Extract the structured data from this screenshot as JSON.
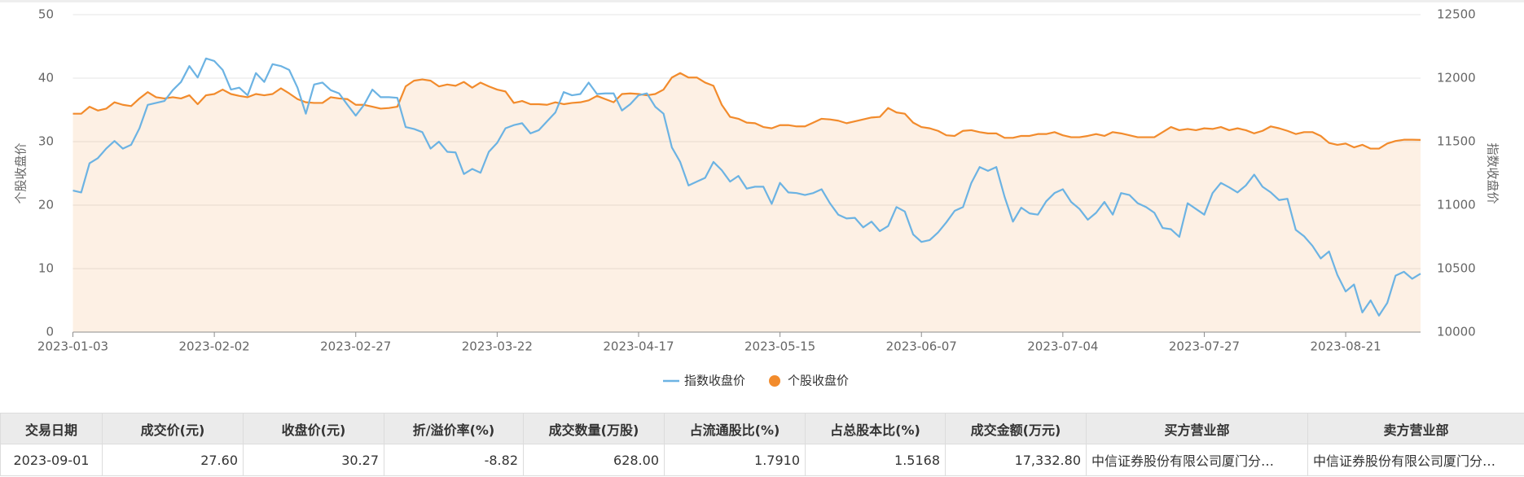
{
  "chart_data": {
    "type": "line",
    "categories": [
      "2023-01-03",
      null,
      null,
      null,
      null,
      null,
      null,
      null,
      null,
      null,
      null,
      null,
      null,
      null,
      null,
      null,
      null,
      "2023-02-02",
      null,
      null,
      null,
      null,
      null,
      null,
      null,
      null,
      null,
      null,
      null,
      null,
      null,
      null,
      null,
      null,
      "2023-02-27",
      null,
      null,
      null,
      null,
      null,
      null,
      null,
      null,
      null,
      null,
      null,
      null,
      null,
      null,
      null,
      null,
      "2023-03-22",
      null,
      null,
      null,
      null,
      null,
      null,
      null,
      null,
      null,
      null,
      null,
      null,
      null,
      null,
      null,
      null,
      "2023-04-17",
      null,
      null,
      null,
      null,
      null,
      null,
      null,
      null,
      null,
      null,
      null,
      null,
      null,
      null,
      null,
      null,
      "2023-05-15",
      null,
      null,
      null,
      null,
      null,
      null,
      null,
      null,
      null,
      null,
      null,
      null,
      null,
      null,
      null,
      null,
      "2023-06-07",
      null,
      null,
      null,
      null,
      null,
      null,
      null,
      null,
      null,
      null,
      null,
      null,
      null,
      null,
      null,
      null,
      "2023-07-04",
      null,
      null,
      null,
      null,
      null,
      null,
      null,
      null,
      null,
      null,
      null,
      null,
      null,
      null,
      null,
      null,
      "2023-07-27",
      null,
      null,
      null,
      null,
      null,
      null,
      null,
      null,
      null,
      null,
      null,
      null,
      null,
      null,
      null,
      null,
      "2023-08-21",
      null,
      null,
      null,
      null,
      null,
      null,
      null,
      null,
      null
    ],
    "y_label": "个股收盘价",
    "y2_label": "指数收盘价",
    "ylim": [
      0,
      50
    ],
    "yticks": [
      0,
      10,
      20,
      30,
      40,
      50
    ],
    "y2lim": [
      10000,
      12500
    ],
    "y2ticks": [
      10000,
      10500,
      11000,
      11500,
      12000,
      12500
    ],
    "grid": true,
    "legend": "bottom",
    "series": [
      {
        "name": "指数收盘价",
        "color": "#6cb3e3",
        "axis": "y2",
        "values": [
          11115,
          11100,
          11330,
          11370,
          11445,
          11505,
          11445,
          11475,
          11605,
          11790,
          11805,
          11820,
          11905,
          11970,
          12095,
          12005,
          12155,
          12135,
          12065,
          11910,
          11925,
          11865,
          12040,
          11970,
          12110,
          12095,
          12065,
          11925,
          11720,
          11950,
          11965,
          11905,
          11880,
          11790,
          11705,
          11790,
          11910,
          11850,
          11850,
          11845,
          11615,
          11600,
          11575,
          11445,
          11500,
          11420,
          11415,
          11245,
          11285,
          11255,
          11420,
          11490,
          11605,
          11630,
          11645,
          11565,
          11590,
          11660,
          11730,
          11890,
          11865,
          11875,
          11965,
          11875,
          11880,
          11880,
          11745,
          11795,
          11865,
          11880,
          11775,
          11720,
          11455,
          11340,
          11155,
          11185,
          11215,
          11340,
          11275,
          11185,
          11230,
          11130,
          11145,
          11145,
          11010,
          11175,
          11100,
          11095,
          11080,
          11095,
          11125,
          11015,
          10925,
          10895,
          10900,
          10825,
          10870,
          10795,
          10835,
          10985,
          10950,
          10770,
          10710,
          10725,
          10785,
          10865,
          10955,
          10985,
          11175,
          11300,
          11270,
          11300,
          11065,
          10870,
          10980,
          10935,
          10925,
          11030,
          11095,
          11125,
          11025,
          10970,
          10885,
          10940,
          11025,
          10925,
          11095,
          11080,
          11015,
          10985,
          10940,
          10820,
          10810,
          10750,
          11015,
          10970,
          10925,
          11095,
          11175,
          11140,
          11100,
          11155,
          11240,
          11145,
          11100,
          11040,
          11050,
          10805,
          10755,
          10680,
          10580,
          10635,
          10450,
          10320,
          10375,
          10155,
          10250,
          10130,
          10230,
          10445,
          10475,
          10420,
          10460
        ]
      },
      {
        "name": "个股收盘价",
        "color": "#f28b2c",
        "axis": "y",
        "area": true,
        "values": [
          34.4,
          34.4,
          35.5,
          34.9,
          35.2,
          36.2,
          35.8,
          35.6,
          36.8,
          37.8,
          37.0,
          36.8,
          37.0,
          36.8,
          37.3,
          35.9,
          37.3,
          37.5,
          38.2,
          37.5,
          37.2,
          37.0,
          37.5,
          37.3,
          37.5,
          38.4,
          37.6,
          36.7,
          36.2,
          36.1,
          36.1,
          37.0,
          36.8,
          36.7,
          35.8,
          35.8,
          35.5,
          35.2,
          35.3,
          35.5,
          38.7,
          39.6,
          39.8,
          39.6,
          38.7,
          39.0,
          38.8,
          39.4,
          38.5,
          39.3,
          38.7,
          38.2,
          37.9,
          36.1,
          36.4,
          35.9,
          35.9,
          35.8,
          36.2,
          35.9,
          36.1,
          36.2,
          36.5,
          37.2,
          36.7,
          36.2,
          37.5,
          37.6,
          37.5,
          37.3,
          37.5,
          38.2,
          40.1,
          40.8,
          40.1,
          40.1,
          39.3,
          38.8,
          35.8,
          33.9,
          33.6,
          33.0,
          32.9,
          32.3,
          32.1,
          32.6,
          32.6,
          32.4,
          32.4,
          33.0,
          33.6,
          33.5,
          33.3,
          32.9,
          33.2,
          33.5,
          33.8,
          33.9,
          35.3,
          34.6,
          34.4,
          33.0,
          32.3,
          32.1,
          31.7,
          31.0,
          30.9,
          31.7,
          31.8,
          31.5,
          31.3,
          31.3,
          30.6,
          30.6,
          30.9,
          30.9,
          31.2,
          31.2,
          31.5,
          31.0,
          30.7,
          30.7,
          30.9,
          31.2,
          30.9,
          31.5,
          31.3,
          31.0,
          30.7,
          30.7,
          30.7,
          31.5,
          32.3,
          31.8,
          32.0,
          31.8,
          32.1,
          32.0,
          32.3,
          31.8,
          32.1,
          31.8,
          31.3,
          31.7,
          32.4,
          32.1,
          31.7,
          31.2,
          31.5,
          31.5,
          30.9,
          29.8,
          29.5,
          29.7,
          29.1,
          29.5,
          28.9,
          28.9,
          29.7,
          30.1,
          30.3,
          30.3,
          30.27
        ]
      }
    ]
  },
  "table": {
    "headers": [
      "交易日期",
      "成交价(元)",
      "收盘价(元)",
      "折/溢价率(%)",
      "成交数量(万股)",
      "占流通股比(%)",
      "占总股本比(%)",
      "成交金额(万元)",
      "买方营业部",
      "卖方营业部"
    ],
    "rows": [
      [
        "2023-09-01",
        "27.60",
        "30.27",
        "-8.82",
        "628.00",
        "1.7910",
        "1.5168",
        "17,332.80",
        "中信证券股份有限公司厦门分…",
        "中信证券股份有限公司厦门分…"
      ]
    ]
  }
}
